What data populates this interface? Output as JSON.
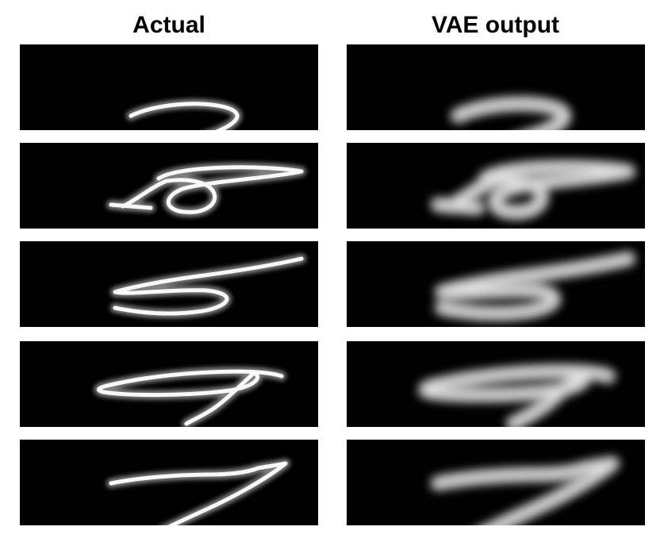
{
  "headers": {
    "actual": "Actual",
    "vae_output": "VAE output"
  },
  "rows": [
    {
      "digit_icon": "digit-2-icon"
    },
    {
      "digit_icon": "digit-8-icon"
    },
    {
      "digit_icon": "digit-5-icon"
    },
    {
      "digit_icon": "digit-9-icon"
    },
    {
      "digit_icon": "digit-7-icon"
    }
  ],
  "colors": {
    "background": "#000000",
    "stroke": "#ffffff",
    "page": "#ffffff"
  }
}
